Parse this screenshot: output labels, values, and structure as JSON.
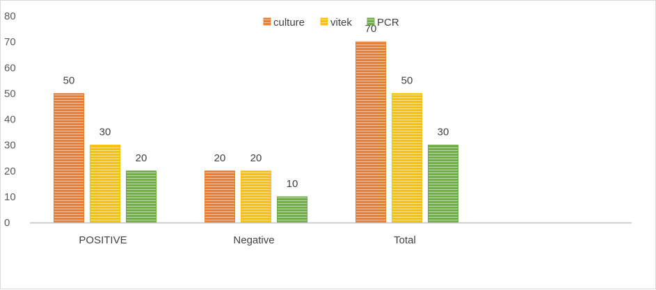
{
  "chart_data": {
    "type": "bar",
    "categories": [
      "POSITIVE",
      "Negative",
      "Total"
    ],
    "series": [
      {
        "name": "culture",
        "values": [
          50,
          20,
          70
        ],
        "color": "#ed7d31"
      },
      {
        "name": "vitek",
        "values": [
          30,
          20,
          50
        ],
        "color": "#ffc000"
      },
      {
        "name": "PCR",
        "values": [
          20,
          10,
          30
        ],
        "color": "#70ad47"
      }
    ],
    "yticks": [
      0,
      10,
      20,
      30,
      40,
      50,
      60,
      70,
      80
    ],
    "ylim": [
      0,
      80
    ],
    "grid": false,
    "legend": "top-center",
    "data_labels": true,
    "bar_style": "horizontal-stripes"
  }
}
